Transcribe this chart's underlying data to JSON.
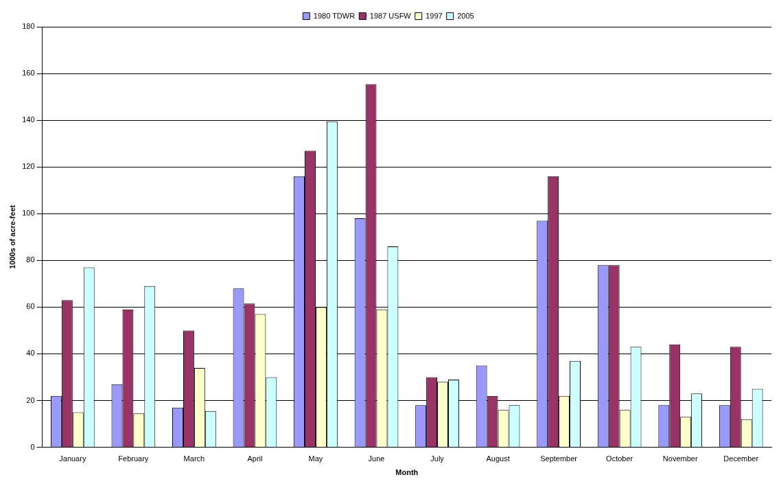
{
  "chart_data": {
    "type": "bar",
    "xlabel": "Month",
    "ylabel": "1000s of acre-feet",
    "categories": [
      "January",
      "February",
      "March",
      "April",
      "May",
      "June",
      "July",
      "August",
      "September",
      "October",
      "November",
      "December"
    ],
    "series": [
      {
        "name": "1980 TDWR",
        "color": "#9999ff",
        "values": [
          22,
          27,
          17,
          68,
          116,
          98,
          18,
          35,
          97,
          78,
          18,
          18
        ]
      },
      {
        "name": "1987 USFW",
        "color": "#993366",
        "values": [
          63,
          59,
          50,
          61.5,
          127,
          155.5,
          30,
          22,
          116,
          78,
          44,
          43
        ]
      },
      {
        "name": "1997",
        "color": "#ffffcc",
        "values": [
          15,
          14.5,
          34,
          57,
          60,
          59,
          28,
          16,
          22,
          16,
          13,
          12
        ]
      },
      {
        "name": "2005",
        "color": "#ccffff",
        "values": [
          77,
          69,
          15.5,
          30,
          139.5,
          86,
          29,
          18,
          37,
          43,
          23,
          25
        ]
      }
    ],
    "ylim": [
      0,
      180
    ],
    "yticks": [
      0,
      20,
      40,
      60,
      80,
      100,
      120,
      140,
      160,
      180
    ],
    "grid": "y",
    "legend": "top"
  }
}
